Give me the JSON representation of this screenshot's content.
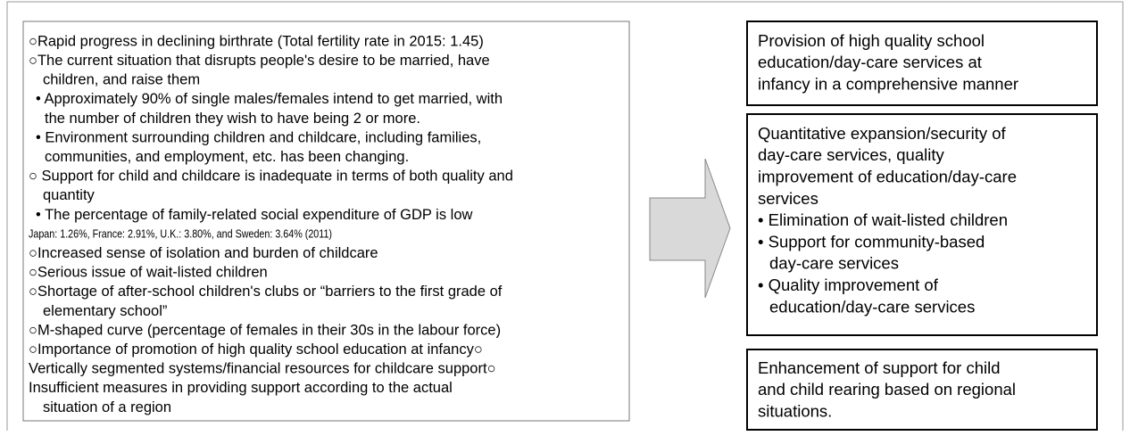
{
  "left_panel": {
    "lines": [
      "○Rapid progress in declining birthrate (Total fertility rate in 2015: 1.45)",
      "○The current situation that disrupts people's desire to be married, have",
      "children, and raise them",
      "• Approximately 90% of single males/females intend to get married, with",
      "the number of children they wish to have being 2 or more.",
      "• Environment surrounding children and childcare, including families,",
      "communities, and employment, etc. has been changing.",
      "○ Support for child and childcare is inadequate in terms of both quality and",
      "quantity",
      "• The percentage of family-related social expenditure of GDP is low",
      "Japan: 1.26%, France: 2.91%, U.K.: 3.80%, and Sweden: 3.64% (2011)",
      "○Increased sense of isolation and burden of childcare",
      "○Serious issue of wait-listed children",
      "○Shortage of after-school children's clubs or “barriers to the first grade of",
      "elementary school”",
      "○M-shaped curve (percentage of females in their 30s in the labour force)",
      "○Importance of promotion of high quality school education at infancy○",
      "Vertically segmented systems/financial resources for childcare support○",
      "Insufficient measures in providing support according to the actual",
      "situation of a region"
    ]
  },
  "right_boxes": [
    {
      "lines": [
        "Provision of high quality school",
        "education/day-care services at",
        "infancy in a comprehensive manner"
      ]
    },
    {
      "lines": [
        "Quantitative expansion/security of",
        "day-care services, quality",
        "improvement of education/day-care",
        "services",
        "• Elimination of wait-listed children",
        "• Support for community-based",
        "day-care services",
        "• Quality improvement of",
        "education/day-care services"
      ]
    },
    {
      "lines": [
        "Enhancement of support for child",
        "and child rearing based on regional",
        "situations."
      ]
    }
  ]
}
